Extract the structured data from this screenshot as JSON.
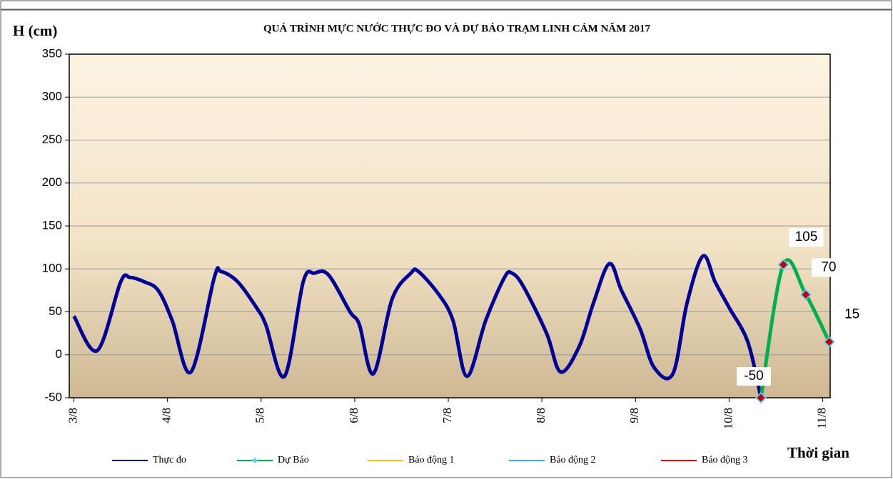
{
  "chart_data": {
    "type": "line",
    "title": "QUÁ TRÌNH  MỰC NƯỚC THỰC ĐO VÀ DỰ BÁO TRẠM  LINH  CẢM NĂM 2017",
    "y_label": "H (cm)",
    "x_label": "Thời gian",
    "xlim": [
      2.95,
      11.08
    ],
    "xticks": [
      {
        "value": 3,
        "label": "3/8"
      },
      {
        "value": 4,
        "label": "4/8"
      },
      {
        "value": 5,
        "label": "5/8"
      },
      {
        "value": 6,
        "label": "6/8"
      },
      {
        "value": 7,
        "label": "7/8"
      },
      {
        "value": 8,
        "label": "8/8"
      },
      {
        "value": 9,
        "label": "9/8"
      },
      {
        "value": 10,
        "label": "10/8"
      },
      {
        "value": 11,
        "label": "11/8"
      }
    ],
    "ylim": [
      -50,
      350
    ],
    "yticks": [
      -50,
      0,
      50,
      100,
      150,
      200,
      250,
      300,
      350
    ],
    "grid": true,
    "series": [
      {
        "name": "Thực đo",
        "color": "#000099",
        "x": [
          3.0,
          3.25,
          3.5,
          3.6,
          3.75,
          3.9,
          4.05,
          4.25,
          4.5,
          4.57,
          4.75,
          4.95,
          5.05,
          5.25,
          5.45,
          5.57,
          5.72,
          5.95,
          6.05,
          6.2,
          6.4,
          6.6,
          6.68,
          6.9,
          7.05,
          7.2,
          7.4,
          7.6,
          7.68,
          7.8,
          8.05,
          8.2,
          8.4,
          8.55,
          8.72,
          8.85,
          9.05,
          9.2,
          9.4,
          9.55,
          9.72,
          9.85,
          10.0,
          10.2,
          10.34
        ],
        "values": [
          45,
          5,
          85,
          90,
          85,
          75,
          40,
          -20,
          90,
          97,
          85,
          55,
          35,
          -25,
          85,
          95,
          93,
          50,
          35,
          -22,
          65,
          95,
          97,
          70,
          40,
          -25,
          40,
          90,
          95,
          80,
          25,
          -20,
          10,
          60,
          106,
          75,
          30,
          -15,
          -22,
          60,
          115,
          85,
          55,
          15,
          -50
        ]
      },
      {
        "name": "Dự Báo",
        "color": "#00b050",
        "marker_color": "#c00000",
        "marker_edge": "#66ccff",
        "x": [
          10.34,
          10.58,
          10.82,
          11.07
        ],
        "values": [
          -50,
          105,
          70,
          15
        ]
      },
      {
        "name": "Báo động 1",
        "color": "#ffc000",
        "x": [],
        "values": []
      },
      {
        "name": "Báo động 2",
        "color": "#33b5e5",
        "x": [],
        "values": []
      },
      {
        "name": "Báo động 3",
        "color": "#ff0000",
        "x": [],
        "values": []
      }
    ]
  }
}
